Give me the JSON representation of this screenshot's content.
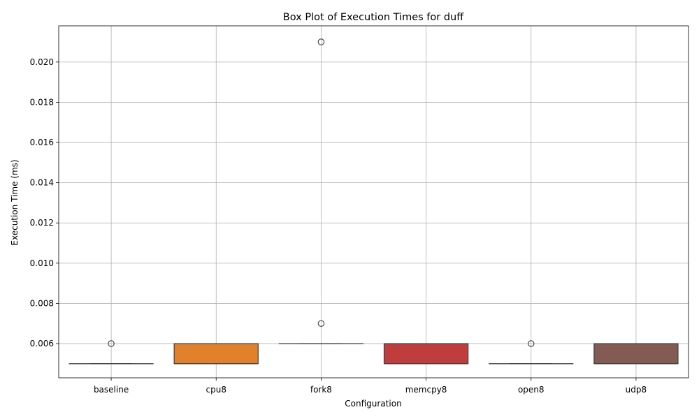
{
  "chart_data": {
    "type": "box",
    "title": "Box Plot of Execution Times for duff",
    "xlabel": "Configuration",
    "ylabel": "Execution Time (ms)",
    "ylim": [
      0.0043,
      0.0218
    ],
    "yticks": [
      0.006,
      0.008,
      0.01,
      0.012,
      0.014,
      0.016,
      0.018,
      0.02
    ],
    "ytick_labels": [
      "0.006",
      "0.008",
      "0.010",
      "0.012",
      "0.014",
      "0.016",
      "0.018",
      "0.020"
    ],
    "grid": true,
    "categories": [
      "baseline",
      "cpu8",
      "fork8",
      "memcpy8",
      "open8",
      "udp8"
    ],
    "series": [
      {
        "category": "baseline",
        "color": "#3b75af",
        "q1": 0.005,
        "median": 0.005,
        "q3": 0.005,
        "whisker_low": 0.005,
        "whisker_high": 0.005,
        "outliers": [
          0.006
        ]
      },
      {
        "category": "cpu8",
        "color": "#e1812c",
        "q1": 0.005,
        "median": 0.005,
        "q3": 0.006,
        "whisker_low": 0.005,
        "whisker_high": 0.006,
        "outliers": []
      },
      {
        "category": "fork8",
        "color": "#3a923a",
        "q1": 0.006,
        "median": 0.006,
        "q3": 0.006,
        "whisker_low": 0.006,
        "whisker_high": 0.006,
        "outliers": [
          0.007,
          0.021
        ]
      },
      {
        "category": "memcpy8",
        "color": "#c03d3e",
        "q1": 0.005,
        "median": 0.005,
        "q3": 0.006,
        "whisker_low": 0.005,
        "whisker_high": 0.006,
        "outliers": []
      },
      {
        "category": "open8",
        "color": "#9372b2",
        "q1": 0.005,
        "median": 0.005,
        "q3": 0.005,
        "whisker_low": 0.005,
        "whisker_high": 0.005,
        "outliers": [
          0.006
        ]
      },
      {
        "category": "udp8",
        "color": "#845b53",
        "q1": 0.005,
        "median": 0.005,
        "q3": 0.006,
        "whisker_low": 0.005,
        "whisker_high": 0.006,
        "outliers": []
      }
    ]
  }
}
